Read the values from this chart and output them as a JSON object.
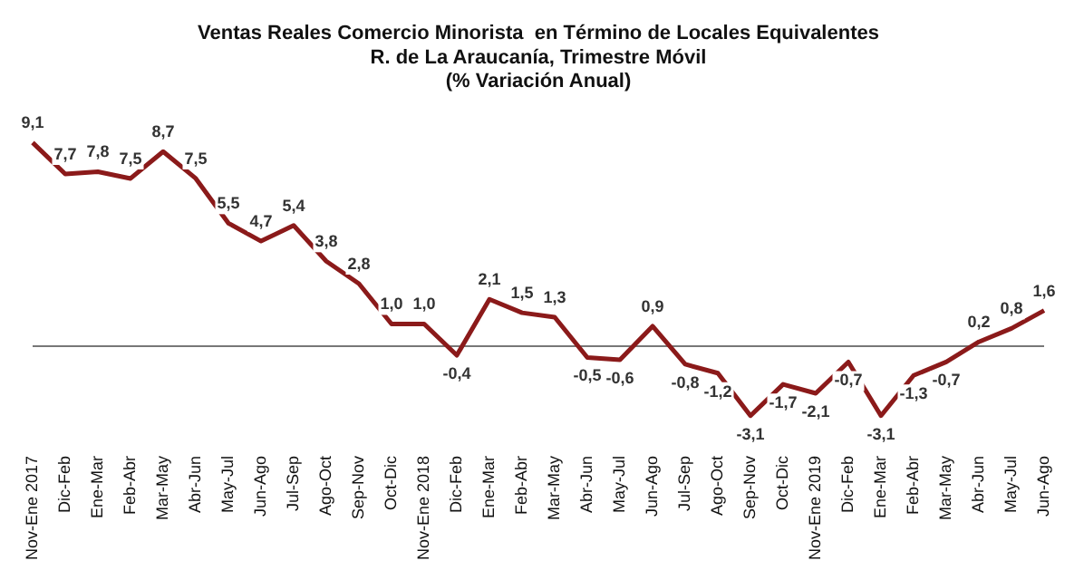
{
  "chart_data": {
    "type": "line",
    "title": "Ventas Reales Comercio Minorista  en Término de Locales Equivalentes\nR. de La Araucanía, Trimestre Móvil\n(% Variación Anual)",
    "categories": [
      "Nov-Ene 2017",
      "Dic-Feb",
      "Ene-Mar",
      "Feb-Abr",
      "Mar-May",
      "Abr-Jun",
      "May-Jul",
      "Jun-Ago",
      "Jul-Sep",
      "Ago-Oct",
      "Sep-Nov",
      "Oct-Dic",
      "Nov-Ene 2018",
      "Dic-Feb",
      "Ene-Mar",
      "Feb-Abr",
      "Mar-May",
      "Abr-Jun",
      "May-Jul",
      "Jun-Ago",
      "Jul-Sep",
      "Ago-Oct",
      "Sep-Nov",
      "Oct-Dic",
      "Nov-Ene 2019",
      "Dic-Feb",
      "Ene-Mar",
      "Feb-Abr",
      "Mar-May",
      "Abr-Jun",
      "May-Jul",
      "Jun-Ago"
    ],
    "series": [
      {
        "color": "#8b1a1a",
        "values": [
          9.1,
          7.7,
          7.8,
          7.5,
          8.7,
          7.5,
          5.5,
          4.7,
          5.4,
          3.8,
          2.8,
          1.0,
          1.0,
          -0.4,
          2.1,
          1.5,
          1.3,
          -0.5,
          -0.6,
          0.9,
          -0.8,
          -1.2,
          -3.1,
          -1.7,
          -2.1,
          -0.7,
          -3.1,
          -1.3,
          -0.7,
          0.2,
          0.8,
          1.6
        ],
        "value_labels": [
          "9,1",
          "7,7",
          "7,8",
          "7,5",
          "8,7",
          "7,5",
          "5,5",
          "4,7",
          "5,4",
          "3,8",
          "2,8",
          "1,0",
          "1,0",
          "-0,4",
          "2,1",
          "1,5",
          "1,3",
          "-0,5",
          "-0,6",
          "0,9",
          "-0,8",
          "-1,2",
          "-3,1",
          "-1,7",
          "-2,1",
          "-0,7",
          "-3,1",
          "-1,3",
          "-0,7",
          "0,2",
          "0,8",
          "1,6"
        ]
      }
    ],
    "marker": "none",
    "line_style": "solid",
    "legend": false,
    "tick_labels": "x"
  }
}
